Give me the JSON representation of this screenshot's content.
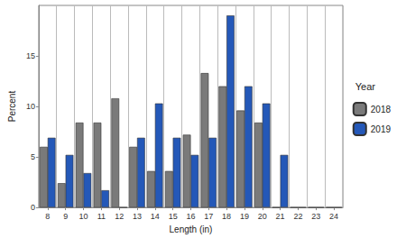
{
  "chart_data": {
    "type": "bar",
    "x_label": "Length (in)",
    "y_label": "Percent",
    "legend_title": "Year",
    "categories": [
      "8",
      "9",
      "10",
      "11",
      "12",
      "13",
      "14",
      "15",
      "16",
      "17",
      "18",
      "19",
      "20",
      "21",
      "22",
      "23",
      "24"
    ],
    "series": [
      {
        "name": "2018",
        "color": "#7a7a7a",
        "values": [
          6.0,
          2.4,
          8.4,
          8.4,
          10.8,
          6.0,
          3.6,
          3.6,
          7.2,
          13.3,
          12.0,
          9.6,
          8.4,
          0,
          0,
          0,
          0
        ]
      },
      {
        "name": "2019",
        "color": "#2458b8",
        "values": [
          6.9,
          5.2,
          3.4,
          1.7,
          0,
          6.9,
          10.3,
          6.9,
          5.2,
          6.9,
          19.0,
          12.0,
          10.3,
          5.2,
          0,
          0,
          0
        ]
      }
    ],
    "ylim": [
      0,
      20
    ],
    "yticks": [
      0,
      5,
      10,
      15
    ],
    "grid": true,
    "legend": "right"
  }
}
